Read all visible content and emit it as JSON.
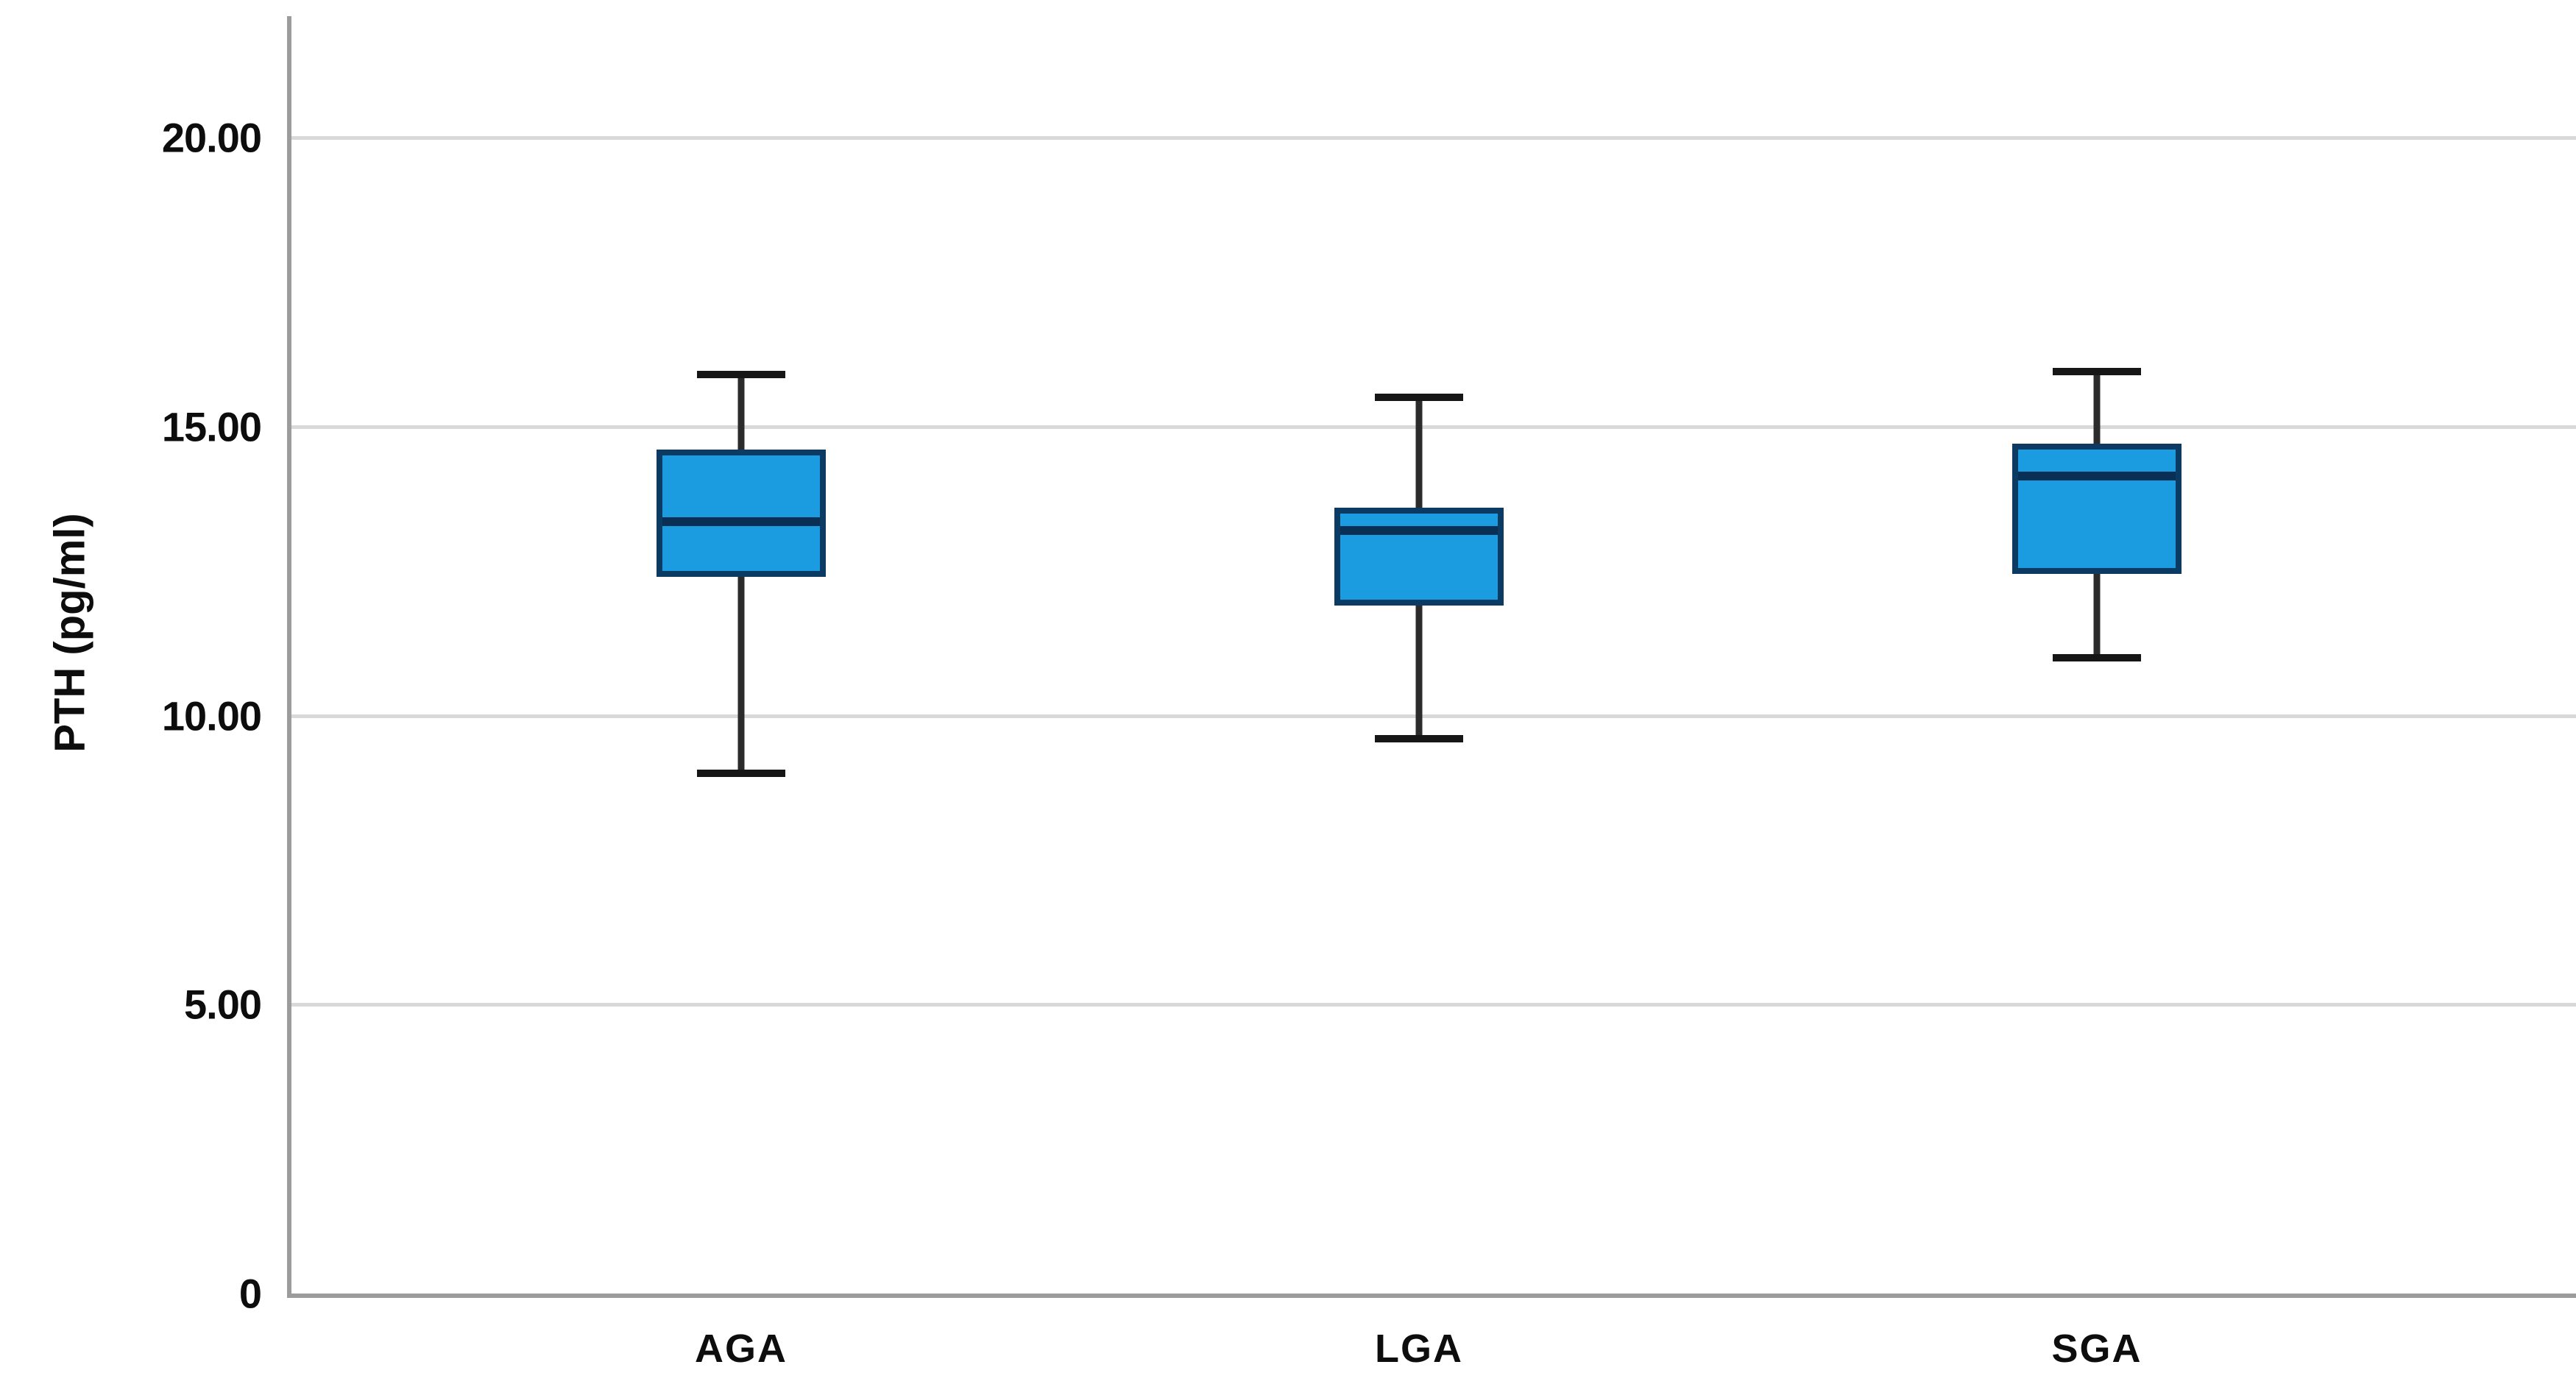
{
  "figure": {
    "background": "#ffffff"
  },
  "colors": {
    "box_fill": "#1b9ce0",
    "box_border": "#0b3a63",
    "median_line": "#0a2f55",
    "whisker": "#2b2b2b",
    "gridline": "#d9d9d9",
    "axis_line": "#9c9c9c",
    "text": "#0d0d0d"
  },
  "chart_data": {
    "type": "boxplot",
    "title": "",
    "xlabel": "",
    "ylabel": "PTH (pg/ml)",
    "categories": [
      "AGA",
      "LGA",
      "SGA"
    ],
    "y_ticks": [
      {
        "label": "20.00",
        "value": 20
      },
      {
        "label": "15.00",
        "value": 15
      },
      {
        "label": "10.00",
        "value": 10
      },
      {
        "label": "5.00",
        "value": 5
      },
      {
        "label": "0",
        "value": 0
      }
    ],
    "ylim": [
      0,
      22.4
    ],
    "grid": "horizontal-only",
    "legend": "none",
    "series": [
      {
        "category": "AGA",
        "whisker_low": 9.0,
        "q1": 12.4,
        "median": 13.35,
        "q3": 14.6,
        "whisker_high": 15.9
      },
      {
        "category": "LGA",
        "whisker_low": 9.6,
        "q1": 11.9,
        "median": 13.2,
        "q3": 13.6,
        "whisker_high": 15.5
      },
      {
        "category": "SGA",
        "whisker_low": 11.0,
        "q1": 12.45,
        "median": 14.15,
        "q3": 14.7,
        "whisker_high": 15.95
      }
    ]
  }
}
